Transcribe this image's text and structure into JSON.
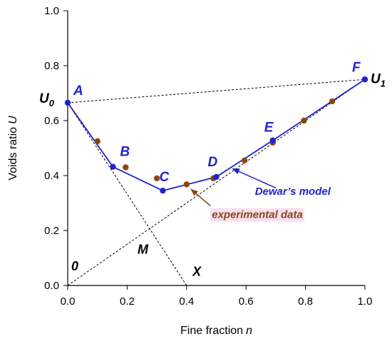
{
  "chart_data": {
    "type": "line",
    "title": "",
    "xlabel": "Fine fraction",
    "xlabel_symbol": "n",
    "ylabel": "Voids ratio",
    "ylabel_symbol": "U",
    "xlim": [
      0.0,
      1.0
    ],
    "ylim": [
      0.0,
      1.0
    ],
    "x_ticks": [
      "0.0",
      "0.2",
      "0.4",
      "0.6",
      "0.8",
      "1.0"
    ],
    "y_ticks": [
      "0.0",
      "0.2",
      "0.4",
      "0.6",
      "0.8",
      "1.0"
    ],
    "grid": false,
    "series": [
      {
        "name": "Dewar’s model",
        "color": "#2222cc",
        "marker": "circle",
        "x": [
          0.0,
          0.152,
          0.32,
          0.5,
          0.69,
          1.0
        ],
        "y": [
          0.665,
          0.432,
          0.345,
          0.395,
          0.528,
          0.75
        ],
        "point_labels": [
          "A",
          "B",
          "C",
          "D",
          "E",
          "F"
        ]
      },
      {
        "name": "experimental data",
        "color": "#8b4513",
        "marker": "circle",
        "x": [
          0.1,
          0.195,
          0.3,
          0.4,
          0.49,
          0.595,
          0.69,
          0.795,
          0.89
        ],
        "y": [
          0.525,
          0.43,
          0.39,
          0.368,
          0.39,
          0.455,
          0.52,
          0.6,
          0.67
        ]
      }
    ],
    "reference_lines": [
      {
        "from": [
          0.0,
          0.665
        ],
        "to": [
          1.0,
          0.75
        ],
        "style": "dotted"
      },
      {
        "from": [
          0.0,
          0.665
        ],
        "to": [
          0.4,
          0.0
        ],
        "style": "dotted"
      },
      {
        "from": [
          0.0,
          0.0
        ],
        "to": [
          1.0,
          0.75
        ],
        "style": "dotted"
      }
    ],
    "annotations": {
      "U0_main": "U",
      "U0_sub": "0",
      "U1_main": "U",
      "U1_sub": "1",
      "origin": "0",
      "M": "M",
      "X": "X",
      "model_label": "Dewar’s model",
      "exp_label": "experimental data"
    },
    "colors": {
      "model": "#2222cc",
      "experimental": "#8b4513",
      "exp_highlight": "#f7dff0",
      "reference": "#000000"
    }
  }
}
